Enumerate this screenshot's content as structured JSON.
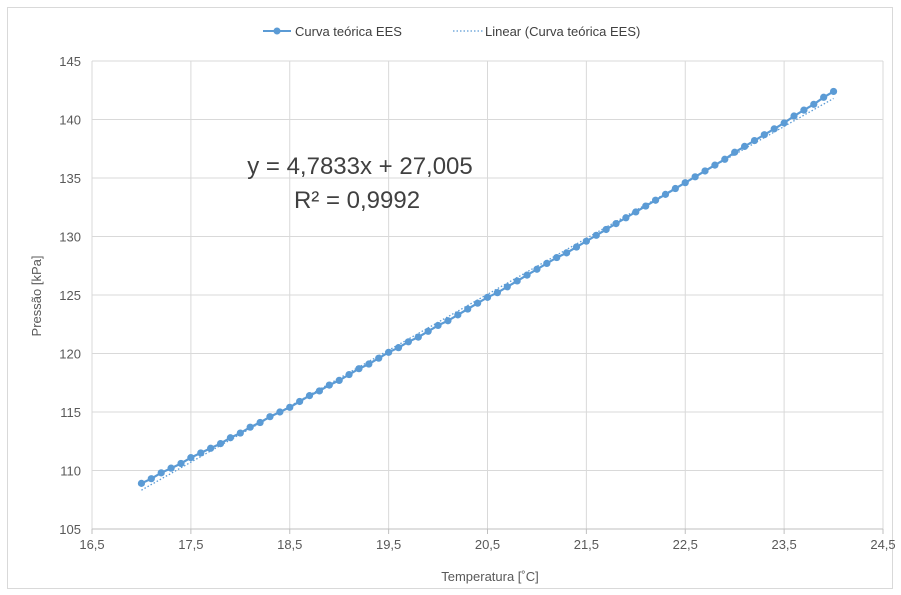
{
  "chart_data": {
    "type": "scatter",
    "xlabel": "Temperatura [˚C]",
    "ylabel": "Pressão [kPa]",
    "xlim": [
      16.5,
      24.5
    ],
    "ylim": [
      105,
      145
    ],
    "x_ticks": [
      "16,5",
      "17,5",
      "18,5",
      "19,5",
      "20,5",
      "21,5",
      "22,5",
      "23,5",
      "24,5"
    ],
    "y_ticks": [
      "105",
      "110",
      "115",
      "120",
      "125",
      "130",
      "135",
      "140",
      "145"
    ],
    "grid": true,
    "legend_position": "top",
    "series": [
      {
        "name": "Curva teórica EES",
        "style": "line-with-markers",
        "color": "#5b9bd5",
        "x": [
          17.0,
          17.1,
          17.2,
          17.3,
          17.4,
          17.5,
          17.6,
          17.7,
          17.8,
          17.9,
          18.0,
          18.1,
          18.2,
          18.3,
          18.4,
          18.5,
          18.6,
          18.7,
          18.8,
          18.9,
          19.0,
          19.1,
          19.2,
          19.3,
          19.4,
          19.5,
          19.6,
          19.7,
          19.8,
          19.9,
          20.0,
          20.1,
          20.2,
          20.3,
          20.4,
          20.5,
          20.6,
          20.7,
          20.8,
          20.9,
          21.0,
          21.1,
          21.2,
          21.3,
          21.4,
          21.5,
          21.6,
          21.7,
          21.8,
          21.9,
          22.0,
          22.1,
          22.2,
          22.3,
          22.4,
          22.5,
          22.6,
          22.7,
          22.8,
          22.9,
          23.0,
          23.1,
          23.2,
          23.3,
          23.4,
          23.5,
          23.6,
          23.7,
          23.8,
          23.9,
          24.0
        ],
        "y": [
          108.9,
          109.3,
          109.8,
          110.2,
          110.6,
          111.1,
          111.5,
          111.9,
          112.3,
          112.8,
          113.2,
          113.7,
          114.1,
          114.6,
          115.0,
          115.4,
          115.9,
          116.4,
          116.8,
          117.3,
          117.7,
          118.2,
          118.7,
          119.1,
          119.6,
          120.1,
          120.5,
          121.0,
          121.4,
          121.9,
          122.4,
          122.8,
          123.3,
          123.8,
          124.3,
          124.8,
          125.2,
          125.7,
          126.2,
          126.7,
          127.2,
          127.7,
          128.2,
          128.6,
          129.1,
          129.6,
          130.1,
          130.6,
          131.1,
          131.6,
          132.1,
          132.6,
          133.1,
          133.6,
          134.1,
          134.6,
          135.1,
          135.6,
          136.1,
          136.6,
          137.2,
          137.7,
          138.2,
          138.7,
          139.2,
          139.7,
          140.3,
          140.8,
          141.3,
          141.9,
          142.4
        ]
      },
      {
        "name": "Linear (Curva teórica EES)",
        "style": "dotted-trendline",
        "color": "#5b9bd5",
        "x": [
          17.0,
          24.0
        ],
        "y": [
          108.32,
          141.8
        ]
      }
    ],
    "annotation": {
      "equation": "y = 4,7833x + 27,005",
      "r_squared": "R² = 0,9992"
    }
  },
  "legend": {
    "series_label": "Curva teórica EES",
    "trend_label": "Linear (Curva teórica EES)"
  }
}
